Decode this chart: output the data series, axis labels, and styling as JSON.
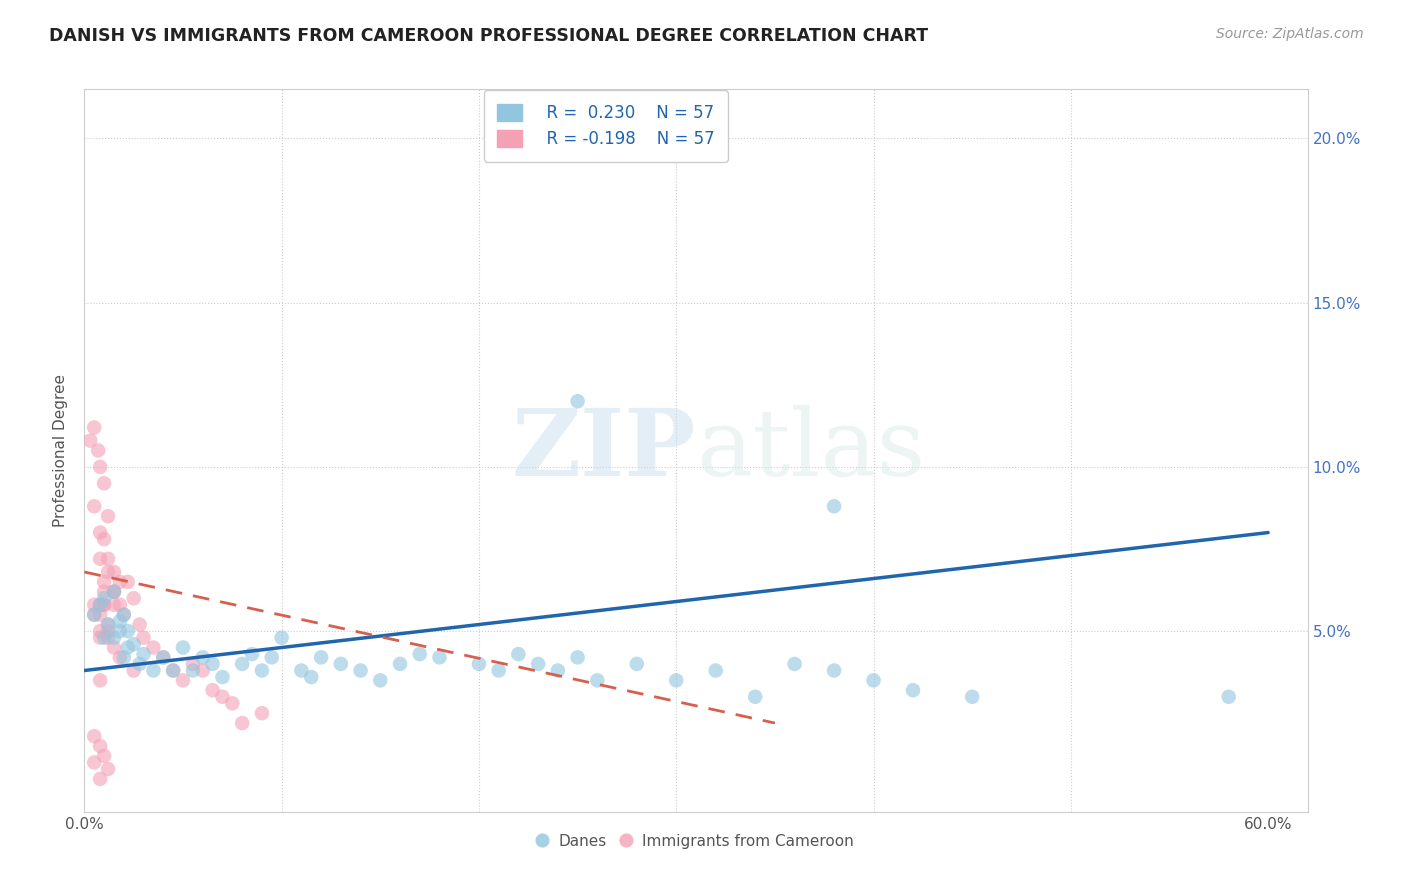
{
  "title": "DANISH VS IMMIGRANTS FROM CAMEROON PROFESSIONAL DEGREE CORRELATION CHART",
  "source": "Source: ZipAtlas.com",
  "ylabel": "Professional Degree",
  "xlim": [
    0.0,
    0.62
  ],
  "ylim": [
    -0.005,
    0.215
  ],
  "blue_color": "#92c5de",
  "pink_color": "#f4a0b5",
  "blue_line_color": "#2166ac",
  "pink_line_color": "#d6604d",
  "background_color": "#ffffff",
  "grid_color": "#cccccc",
  "watermark_zip": "ZIP",
  "watermark_atlas": "atlas",
  "legend_r_blue": "R =  0.230",
  "legend_n_blue": "N = 57",
  "legend_r_pink": "R = -0.198",
  "legend_n_pink": "N = 57",
  "danes_x": [
    0.005,
    0.008,
    0.01,
    0.012,
    0.01,
    0.015,
    0.018,
    0.02,
    0.022,
    0.015,
    0.018,
    0.02,
    0.025,
    0.022,
    0.028,
    0.03,
    0.035,
    0.04,
    0.045,
    0.05,
    0.055,
    0.06,
    0.065,
    0.07,
    0.08,
    0.085,
    0.09,
    0.095,
    0.1,
    0.11,
    0.115,
    0.12,
    0.13,
    0.14,
    0.15,
    0.16,
    0.17,
    0.18,
    0.2,
    0.21,
    0.22,
    0.23,
    0.24,
    0.25,
    0.26,
    0.28,
    0.3,
    0.32,
    0.34,
    0.36,
    0.38,
    0.4,
    0.42,
    0.45,
    0.38,
    0.58,
    0.25
  ],
  "danes_y": [
    0.055,
    0.058,
    0.06,
    0.052,
    0.048,
    0.062,
    0.05,
    0.055,
    0.045,
    0.048,
    0.053,
    0.042,
    0.046,
    0.05,
    0.04,
    0.043,
    0.038,
    0.042,
    0.038,
    0.045,
    0.038,
    0.042,
    0.04,
    0.036,
    0.04,
    0.043,
    0.038,
    0.042,
    0.048,
    0.038,
    0.036,
    0.042,
    0.04,
    0.038,
    0.035,
    0.04,
    0.043,
    0.042,
    0.04,
    0.038,
    0.043,
    0.04,
    0.038,
    0.042,
    0.035,
    0.04,
    0.035,
    0.038,
    0.03,
    0.04,
    0.038,
    0.035,
    0.032,
    0.03,
    0.088,
    0.03,
    0.12
  ],
  "cameroon_x": [
    0.003,
    0.005,
    0.007,
    0.008,
    0.01,
    0.005,
    0.012,
    0.008,
    0.01,
    0.012,
    0.015,
    0.01,
    0.015,
    0.018,
    0.008,
    0.012,
    0.015,
    0.01,
    0.008,
    0.012,
    0.018,
    0.015,
    0.02,
    0.025,
    0.022,
    0.028,
    0.03,
    0.035,
    0.04,
    0.045,
    0.05,
    0.055,
    0.06,
    0.065,
    0.07,
    0.075,
    0.08,
    0.09,
    0.008,
    0.01,
    0.005,
    0.008,
    0.012,
    0.015,
    0.018,
    0.01,
    0.012,
    0.008,
    0.005,
    0.008,
    0.01,
    0.005,
    0.012,
    0.008,
    0.025,
    0.005,
    0.008
  ],
  "cameroon_y": [
    0.108,
    0.112,
    0.105,
    0.1,
    0.095,
    0.088,
    0.085,
    0.08,
    0.078,
    0.072,
    0.068,
    0.065,
    0.062,
    0.058,
    0.072,
    0.068,
    0.062,
    0.058,
    0.055,
    0.05,
    0.065,
    0.058,
    0.055,
    0.06,
    0.065,
    0.052,
    0.048,
    0.045,
    0.042,
    0.038,
    0.035,
    0.04,
    0.038,
    0.032,
    0.03,
    0.028,
    0.022,
    0.025,
    0.058,
    0.062,
    0.055,
    0.05,
    0.048,
    0.045,
    0.042,
    0.058,
    0.052,
    0.048,
    0.018,
    0.015,
    0.012,
    0.01,
    0.008,
    0.005,
    0.038,
    0.058,
    0.035
  ],
  "blue_trend_x": [
    0.0,
    0.6
  ],
  "blue_trend_y": [
    0.038,
    0.08
  ],
  "pink_trend_x": [
    0.0,
    0.35
  ],
  "pink_trend_y": [
    0.068,
    0.022
  ]
}
